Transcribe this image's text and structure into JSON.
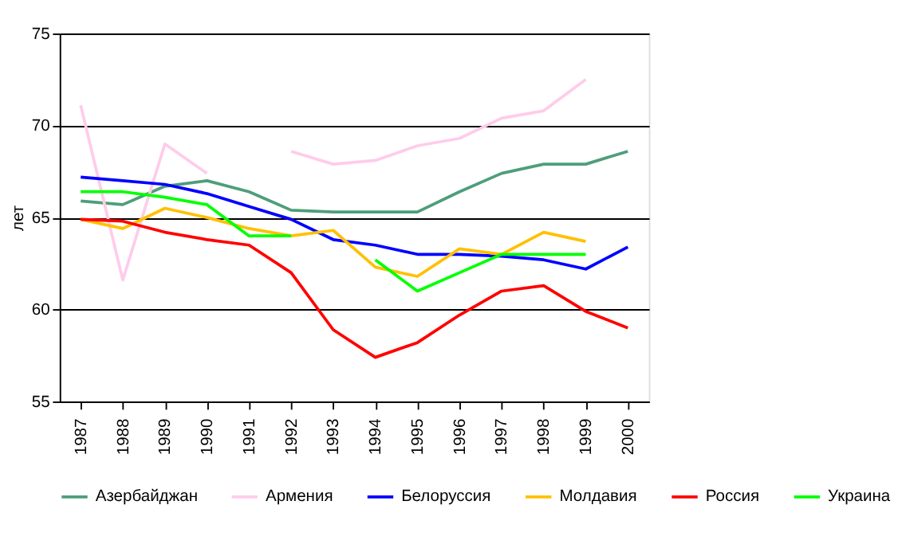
{
  "chart_data": {
    "type": "line",
    "ylabel": "лет",
    "categories": [
      "1987",
      "1988",
      "1989",
      "1990",
      "1991",
      "1992",
      "1993",
      "1994",
      "1995",
      "1996",
      "1997",
      "1998",
      "1999",
      "2000"
    ],
    "series": [
      {
        "name": "Азербайджан",
        "color": "#4e9e7a",
        "values": [
          65.9,
          65.7,
          66.7,
          67.0,
          66.4,
          65.4,
          65.3,
          65.3,
          65.3,
          66.4,
          67.4,
          67.9,
          67.9,
          68.6
        ]
      },
      {
        "name": "Армения",
        "color": "#ffccea",
        "values": [
          71.1,
          61.6,
          69.0,
          67.4,
          null,
          68.6,
          67.9,
          68.1,
          68.9,
          69.3,
          70.4,
          70.8,
          72.5,
          null
        ]
      },
      {
        "name": "Белоруссия",
        "color": "#0000ff",
        "values": [
          67.2,
          67.0,
          66.8,
          66.3,
          65.6,
          64.9,
          63.8,
          63.5,
          63.0,
          63.0,
          62.9,
          62.7,
          62.2,
          63.4
        ]
      },
      {
        "name": "Молдавия",
        "color": "#ffc000",
        "values": [
          64.9,
          64.4,
          65.5,
          65.0,
          64.4,
          64.0,
          64.3,
          62.3,
          61.8,
          63.3,
          63.0,
          64.2,
          63.7,
          null
        ]
      },
      {
        "name": "Россия",
        "color": "#ff0000",
        "values": [
          64.9,
          64.8,
          64.2,
          63.8,
          63.5,
          62.0,
          58.9,
          57.4,
          58.2,
          59.7,
          61.0,
          61.3,
          59.9,
          59.0
        ]
      },
      {
        "name": "Украина",
        "color": "#00ff00",
        "values": [
          66.4,
          66.4,
          66.1,
          65.7,
          64.0,
          64.0,
          null,
          62.7,
          61.0,
          62.0,
          63.0,
          63.0,
          63.0,
          null
        ]
      }
    ],
    "ylim": [
      55,
      75
    ],
    "yticks": [
      55,
      60,
      65,
      70,
      75
    ],
    "grid": "y",
    "legend": "bottom",
    "marker": "none",
    "line_style": "solid"
  }
}
